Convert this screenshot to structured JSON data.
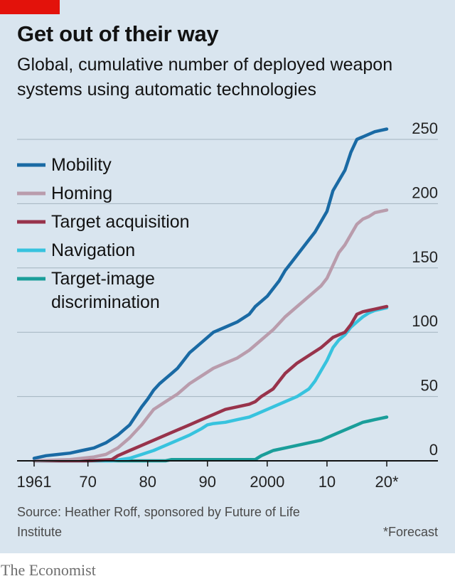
{
  "header": {
    "title": "Get out of their way",
    "subtitle": "Global, cumulative number of deployed weapon systems using automatic technologies"
  },
  "footer": {
    "source": "Source: Heather Roff, sponsored by Future of Life Institute",
    "note": "*Forecast",
    "brand": "The Economist"
  },
  "colors": {
    "background": "#d9e5ef",
    "accent": "#e3120b",
    "mobility": "#1a6aa4",
    "homing": "#b99cac",
    "target_acquisition": "#98334b",
    "navigation": "#37c3de",
    "target_image": "#1a9e9a"
  },
  "chart_data": {
    "type": "line",
    "title": "Get out of their way",
    "subtitle": "Global, cumulative number of deployed weapon systems using automatic technologies",
    "x_range": [
      1961,
      2020
    ],
    "ylim": [
      0,
      250
    ],
    "x_ticks": [
      {
        "value": 1961,
        "label": "1961"
      },
      {
        "value": 1970,
        "label": "70"
      },
      {
        "value": 1980,
        "label": "80"
      },
      {
        "value": 1990,
        "label": "90"
      },
      {
        "value": 2000,
        "label": "2000"
      },
      {
        "value": 2010,
        "label": "10"
      },
      {
        "value": 2020,
        "label": "20*"
      }
    ],
    "y_ticks": [
      {
        "value": 0,
        "label": "0"
      },
      {
        "value": 50,
        "label": "50"
      },
      {
        "value": 100,
        "label": "100"
      },
      {
        "value": 150,
        "label": "150"
      },
      {
        "value": 200,
        "label": "200"
      },
      {
        "value": 250,
        "label": "250"
      }
    ],
    "grid": true,
    "legend_position": "top-left",
    "series": [
      {
        "name": "Mobility",
        "color": "#1a6aa4",
        "points": [
          [
            1961,
            2
          ],
          [
            1963,
            4
          ],
          [
            1965,
            5
          ],
          [
            1967,
            6
          ],
          [
            1969,
            8
          ],
          [
            1971,
            10
          ],
          [
            1973,
            14
          ],
          [
            1975,
            20
          ],
          [
            1976,
            24
          ],
          [
            1977,
            28
          ],
          [
            1978,
            35
          ],
          [
            1979,
            42
          ],
          [
            1980,
            48
          ],
          [
            1981,
            55
          ],
          [
            1982,
            60
          ],
          [
            1983,
            64
          ],
          [
            1984,
            68
          ],
          [
            1985,
            72
          ],
          [
            1986,
            78
          ],
          [
            1987,
            84
          ],
          [
            1988,
            88
          ],
          [
            1989,
            92
          ],
          [
            1990,
            96
          ],
          [
            1991,
            100
          ],
          [
            1993,
            104
          ],
          [
            1995,
            108
          ],
          [
            1997,
            114
          ],
          [
            1998,
            120
          ],
          [
            1999,
            124
          ],
          [
            2000,
            128
          ],
          [
            2001,
            134
          ],
          [
            2002,
            140
          ],
          [
            2003,
            148
          ],
          [
            2004,
            154
          ],
          [
            2005,
            160
          ],
          [
            2006,
            166
          ],
          [
            2007,
            172
          ],
          [
            2008,
            178
          ],
          [
            2009,
            186
          ],
          [
            2010,
            194
          ],
          [
            2011,
            210
          ],
          [
            2012,
            218
          ],
          [
            2013,
            226
          ],
          [
            2014,
            240
          ],
          [
            2015,
            250
          ],
          [
            2016,
            252
          ],
          [
            2017,
            254
          ],
          [
            2018,
            256
          ],
          [
            2019,
            257
          ],
          [
            2020,
            258
          ]
        ]
      },
      {
        "name": "Homing",
        "color": "#b99cac",
        "points": [
          [
            1961,
            0
          ],
          [
            1967,
            1
          ],
          [
            1971,
            3
          ],
          [
            1973,
            5
          ],
          [
            1975,
            10
          ],
          [
            1977,
            18
          ],
          [
            1979,
            28
          ],
          [
            1980,
            34
          ],
          [
            1981,
            40
          ],
          [
            1983,
            46
          ],
          [
            1985,
            52
          ],
          [
            1987,
            60
          ],
          [
            1989,
            66
          ],
          [
            1991,
            72
          ],
          [
            1993,
            76
          ],
          [
            1995,
            80
          ],
          [
            1997,
            86
          ],
          [
            1999,
            94
          ],
          [
            2000,
            98
          ],
          [
            2001,
            102
          ],
          [
            2003,
            112
          ],
          [
            2005,
            120
          ],
          [
            2007,
            128
          ],
          [
            2009,
            136
          ],
          [
            2010,
            142
          ],
          [
            2011,
            152
          ],
          [
            2012,
            162
          ],
          [
            2013,
            168
          ],
          [
            2014,
            176
          ],
          [
            2015,
            184
          ],
          [
            2016,
            188
          ],
          [
            2017,
            190
          ],
          [
            2018,
            193
          ],
          [
            2019,
            194
          ],
          [
            2020,
            195
          ]
        ]
      },
      {
        "name": "Target acquisition",
        "color": "#98334b",
        "points": [
          [
            1961,
            0
          ],
          [
            1970,
            0
          ],
          [
            1974,
            1
          ],
          [
            1975,
            4
          ],
          [
            1977,
            8
          ],
          [
            1979,
            12
          ],
          [
            1981,
            16
          ],
          [
            1983,
            20
          ],
          [
            1985,
            24
          ],
          [
            1987,
            28
          ],
          [
            1989,
            32
          ],
          [
            1991,
            36
          ],
          [
            1993,
            40
          ],
          [
            1995,
            42
          ],
          [
            1997,
            44
          ],
          [
            1998,
            46
          ],
          [
            1999,
            50
          ],
          [
            2001,
            56
          ],
          [
            2002,
            62
          ],
          [
            2003,
            68
          ],
          [
            2005,
            76
          ],
          [
            2007,
            82
          ],
          [
            2009,
            88
          ],
          [
            2010,
            92
          ],
          [
            2011,
            96
          ],
          [
            2012,
            98
          ],
          [
            2013,
            100
          ],
          [
            2014,
            106
          ],
          [
            2015,
            114
          ],
          [
            2016,
            116
          ],
          [
            2017,
            117
          ],
          [
            2018,
            118
          ],
          [
            2019,
            119
          ],
          [
            2020,
            120
          ]
        ]
      },
      {
        "name": "Navigation",
        "color": "#37c3de",
        "points": [
          [
            1961,
            0
          ],
          [
            1974,
            0
          ],
          [
            1977,
            2
          ],
          [
            1979,
            5
          ],
          [
            1981,
            8
          ],
          [
            1983,
            12
          ],
          [
            1985,
            16
          ],
          [
            1987,
            20
          ],
          [
            1989,
            25
          ],
          [
            1990,
            28
          ],
          [
            1991,
            29
          ],
          [
            1993,
            30
          ],
          [
            1995,
            32
          ],
          [
            1997,
            34
          ],
          [
            1998,
            36
          ],
          [
            1999,
            38
          ],
          [
            2001,
            42
          ],
          [
            2003,
            46
          ],
          [
            2005,
            50
          ],
          [
            2007,
            56
          ],
          [
            2008,
            62
          ],
          [
            2009,
            70
          ],
          [
            2010,
            78
          ],
          [
            2011,
            88
          ],
          [
            2012,
            94
          ],
          [
            2013,
            98
          ],
          [
            2014,
            104
          ],
          [
            2015,
            108
          ],
          [
            2016,
            112
          ],
          [
            2017,
            115
          ],
          [
            2018,
            117
          ],
          [
            2019,
            118
          ],
          [
            2020,
            119
          ]
        ]
      },
      {
        "name": "Target-image discrimination",
        "color": "#1a9e9a",
        "points": [
          [
            1961,
            0
          ],
          [
            1983,
            0
          ],
          [
            1984,
            1
          ],
          [
            1998,
            1
          ],
          [
            1999,
            4
          ],
          [
            2000,
            6
          ],
          [
            2001,
            8
          ],
          [
            2003,
            10
          ],
          [
            2005,
            12
          ],
          [
            2007,
            14
          ],
          [
            2009,
            16
          ],
          [
            2011,
            20
          ],
          [
            2012,
            22
          ],
          [
            2013,
            24
          ],
          [
            2014,
            26
          ],
          [
            2015,
            28
          ],
          [
            2016,
            30
          ],
          [
            2017,
            31
          ],
          [
            2018,
            32
          ],
          [
            2019,
            33
          ],
          [
            2020,
            34
          ]
        ]
      }
    ]
  }
}
